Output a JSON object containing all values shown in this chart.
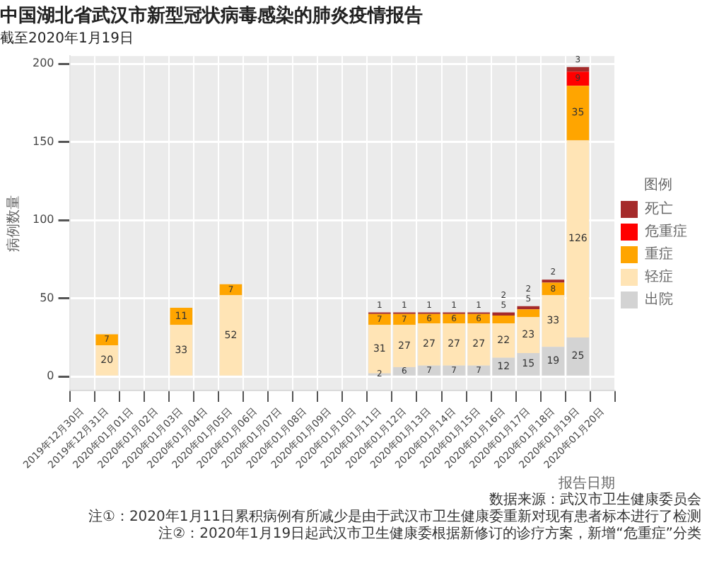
{
  "chart_data": {
    "type": "bar",
    "stacked": true,
    "title": "中国湖北省武汉市新型冠状病毒感染的肺炎疫情报告",
    "subtitle": "截至2020年1月19日",
    "xlabel": "报告日期",
    "ylabel": "病例数量",
    "legend_title": "图例",
    "legend": "right",
    "grid": true,
    "data_labels": true,
    "categories": [
      "2019年12月30日",
      "2019年12月31日",
      "2020年01月01日",
      "2020年01月02日",
      "2020年01月03日",
      "2020年01月04日",
      "2020年01月05日",
      "2020年01月06日",
      "2020年01月07日",
      "2020年01月08日",
      "2020年01月09日",
      "2020年01月10日",
      "2020年01月11日",
      "2020年01月12日",
      "2020年01月13日",
      "2020年01月14日",
      "2020年01月15日",
      "2020年01月16日",
      "2020年01月17日",
      "2020年01月18日",
      "2020年01月19日",
      "2020年01月20日"
    ],
    "ylim": [
      -9,
      205
    ],
    "yticks": [
      0,
      50,
      100,
      150,
      200
    ],
    "series": [
      {
        "name": "出院",
        "color": "#d3d3d3",
        "values": [
          null,
          null,
          null,
          null,
          null,
          null,
          null,
          null,
          null,
          null,
          null,
          null,
          2,
          6,
          7,
          7,
          7,
          12,
          15,
          19,
          25,
          null
        ]
      },
      {
        "name": "轻症",
        "color": "#ffe4b5",
        "values": [
          null,
          20,
          null,
          null,
          33,
          null,
          52,
          null,
          null,
          null,
          null,
          null,
          31,
          27,
          27,
          27,
          27,
          22,
          23,
          33,
          126,
          null
        ]
      },
      {
        "name": "重症",
        "color": "#ffa500",
        "values": [
          null,
          7,
          null,
          null,
          11,
          null,
          7,
          null,
          null,
          null,
          null,
          null,
          7,
          7,
          6,
          6,
          6,
          5,
          5,
          8,
          35,
          null
        ]
      },
      {
        "name": "危重症",
        "color": "#ff0000",
        "values": [
          null,
          null,
          null,
          null,
          null,
          null,
          null,
          null,
          null,
          null,
          null,
          null,
          null,
          null,
          null,
          null,
          null,
          null,
          null,
          null,
          9,
          null
        ]
      },
      {
        "name": "死亡",
        "color": "#a52a2a",
        "values": [
          null,
          null,
          null,
          null,
          null,
          null,
          null,
          null,
          null,
          null,
          null,
          null,
          1,
          1,
          1,
          1,
          1,
          2,
          2,
          2,
          3,
          null
        ]
      }
    ],
    "annotations": [
      "数据来源：武汉市卫生健康委员会",
      "注①：2020年1月11日累积病例有所减少是由于武汉市卫生健康委重新对现有患者标本进行了检测",
      "注②：2020年1月19日起武汉市卫生健康委根据新修订的诊疗方案，新增“危重症”分类"
    ]
  }
}
